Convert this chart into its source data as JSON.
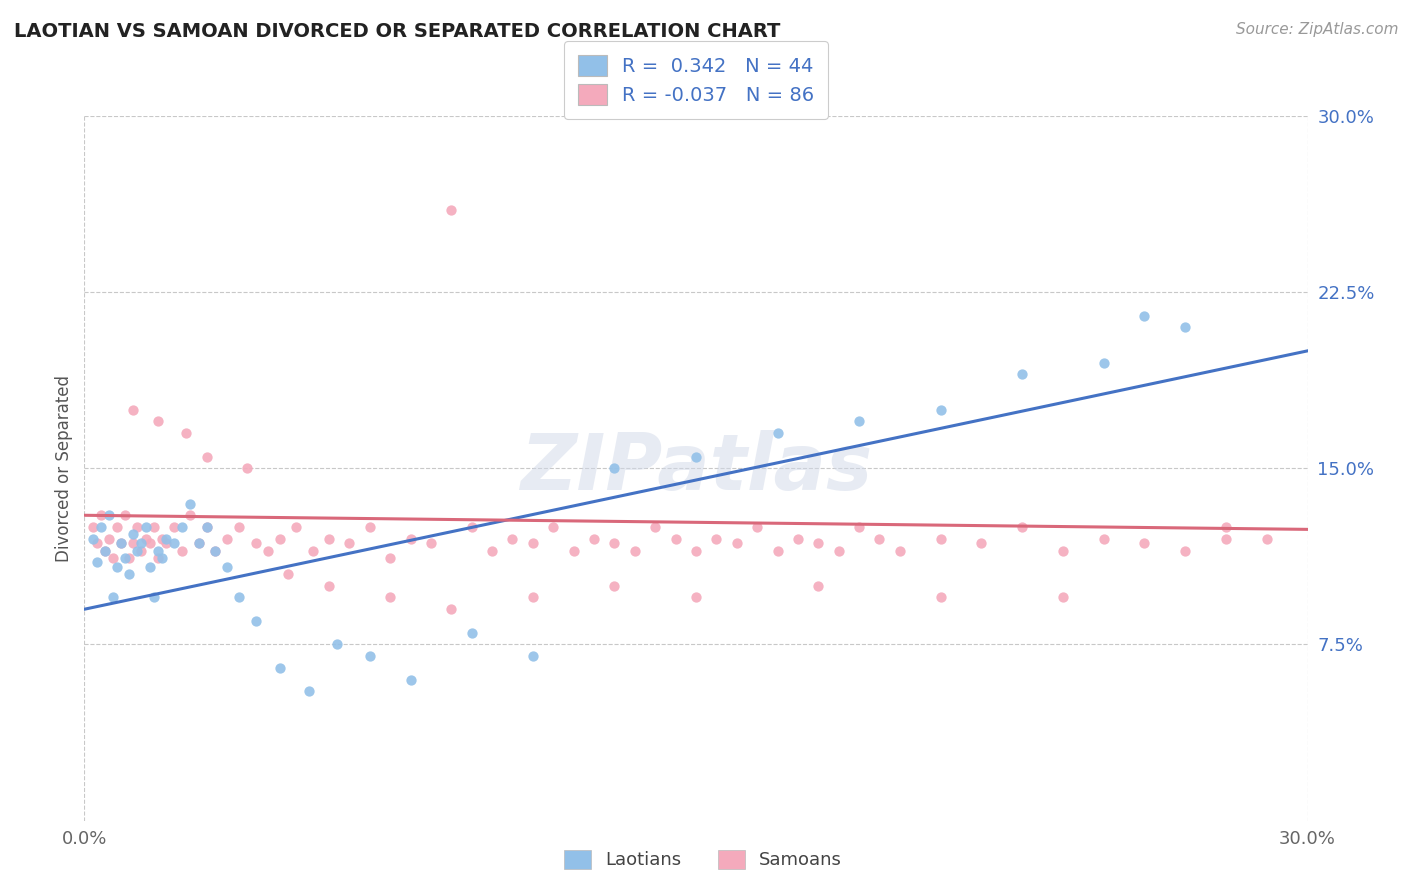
{
  "title": "LAOTIAN VS SAMOAN DIVORCED OR SEPARATED CORRELATION CHART",
  "source_text": "Source: ZipAtlas.com",
  "ylabel": "Divorced or Separated",
  "xmin": 0.0,
  "xmax": 0.3,
  "ymin": 0.0,
  "ymax": 0.3,
  "x_tick_labels": [
    "0.0%",
    "30.0%"
  ],
  "y_ticks_right": [
    0.075,
    0.15,
    0.225,
    0.3
  ],
  "y_tick_labels_right": [
    "7.5%",
    "15.0%",
    "22.5%",
    "30.0%"
  ],
  "laotian_color": "#92C0E8",
  "samoan_color": "#F4AABC",
  "laotian_line_color": "#4472C4",
  "samoan_line_color": "#D9687A",
  "R_laotian": 0.342,
  "N_laotian": 44,
  "R_samoan": -0.037,
  "N_samoan": 86,
  "watermark": "ZIPatlas",
  "grid_color": "#C8C8C8",
  "background_color": "#FFFFFF",
  "lao_line_x0": 0.0,
  "lao_line_y0": 0.09,
  "lao_line_x1": 0.3,
  "lao_line_y1": 0.2,
  "sam_line_x0": 0.0,
  "sam_line_y0": 0.13,
  "sam_line_x1": 0.3,
  "sam_line_y1": 0.124,
  "laotian_x": [
    0.002,
    0.003,
    0.004,
    0.005,
    0.006,
    0.007,
    0.008,
    0.009,
    0.01,
    0.011,
    0.012,
    0.013,
    0.014,
    0.015,
    0.016,
    0.017,
    0.018,
    0.019,
    0.02,
    0.022,
    0.024,
    0.026,
    0.028,
    0.03,
    0.032,
    0.035,
    0.038,
    0.042,
    0.048,
    0.055,
    0.062,
    0.07,
    0.08,
    0.095,
    0.11,
    0.13,
    0.15,
    0.17,
    0.19,
    0.21,
    0.23,
    0.25,
    0.26,
    0.27
  ],
  "laotian_y": [
    0.12,
    0.11,
    0.125,
    0.115,
    0.13,
    0.095,
    0.108,
    0.118,
    0.112,
    0.105,
    0.122,
    0.115,
    0.118,
    0.125,
    0.108,
    0.095,
    0.115,
    0.112,
    0.12,
    0.118,
    0.125,
    0.135,
    0.118,
    0.125,
    0.115,
    0.108,
    0.095,
    0.085,
    0.065,
    0.055,
    0.075,
    0.07,
    0.06,
    0.08,
    0.07,
    0.15,
    0.155,
    0.165,
    0.17,
    0.175,
    0.19,
    0.195,
    0.215,
    0.21
  ],
  "samoan_x": [
    0.002,
    0.003,
    0.004,
    0.005,
    0.006,
    0.007,
    0.008,
    0.009,
    0.01,
    0.011,
    0.012,
    0.013,
    0.014,
    0.015,
    0.016,
    0.017,
    0.018,
    0.019,
    0.02,
    0.022,
    0.024,
    0.026,
    0.028,
    0.03,
    0.032,
    0.035,
    0.038,
    0.042,
    0.045,
    0.048,
    0.052,
    0.056,
    0.06,
    0.065,
    0.07,
    0.075,
    0.08,
    0.085,
    0.09,
    0.095,
    0.1,
    0.105,
    0.11,
    0.115,
    0.12,
    0.125,
    0.13,
    0.135,
    0.14,
    0.145,
    0.15,
    0.155,
    0.16,
    0.165,
    0.17,
    0.175,
    0.18,
    0.185,
    0.19,
    0.195,
    0.2,
    0.21,
    0.22,
    0.23,
    0.24,
    0.25,
    0.26,
    0.27,
    0.28,
    0.29,
    0.012,
    0.018,
    0.025,
    0.03,
    0.04,
    0.05,
    0.06,
    0.075,
    0.09,
    0.11,
    0.13,
    0.15,
    0.18,
    0.21,
    0.24,
    0.28
  ],
  "samoan_y": [
    0.125,
    0.118,
    0.13,
    0.115,
    0.12,
    0.112,
    0.125,
    0.118,
    0.13,
    0.112,
    0.118,
    0.125,
    0.115,
    0.12,
    0.118,
    0.125,
    0.112,
    0.12,
    0.118,
    0.125,
    0.115,
    0.13,
    0.118,
    0.125,
    0.115,
    0.12,
    0.125,
    0.118,
    0.115,
    0.12,
    0.125,
    0.115,
    0.12,
    0.118,
    0.125,
    0.112,
    0.12,
    0.118,
    0.26,
    0.125,
    0.115,
    0.12,
    0.118,
    0.125,
    0.115,
    0.12,
    0.118,
    0.115,
    0.125,
    0.12,
    0.115,
    0.12,
    0.118,
    0.125,
    0.115,
    0.12,
    0.118,
    0.115,
    0.125,
    0.12,
    0.115,
    0.12,
    0.118,
    0.125,
    0.115,
    0.12,
    0.118,
    0.115,
    0.125,
    0.12,
    0.175,
    0.17,
    0.165,
    0.155,
    0.15,
    0.105,
    0.1,
    0.095,
    0.09,
    0.095,
    0.1,
    0.095,
    0.1,
    0.095,
    0.095,
    0.12
  ]
}
